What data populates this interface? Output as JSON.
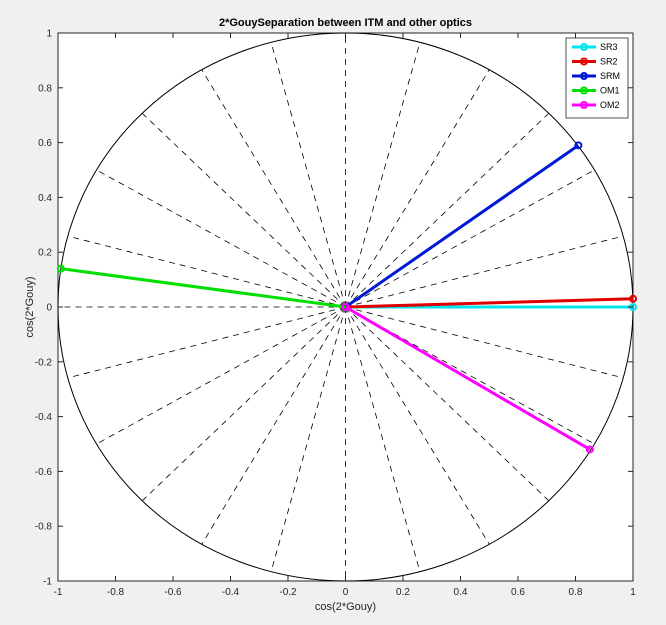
{
  "chart_data": {
    "type": "line",
    "title": "2*GouySeparation between ITM and other optics",
    "xlabel": "cos(2*Gouy)",
    "ylabel": "cos(2*Gouy)",
    "xlim": [
      -1,
      1
    ],
    "ylim": [
      -1,
      1
    ],
    "xticks": [
      "-1",
      "-0.8",
      "-0.6",
      "-0.4",
      "-0.2",
      "0",
      "0.2",
      "0.4",
      "0.6",
      "0.8",
      "1"
    ],
    "yticks": [
      "-1",
      "-0.8",
      "-0.6",
      "-0.4",
      "-0.2",
      "0",
      "0.2",
      "0.4",
      "0.6",
      "0.8",
      "1"
    ],
    "unit_circle": true,
    "radial_guides_deg": [
      0,
      15,
      30,
      45,
      60,
      75,
      90,
      105,
      120,
      135,
      150,
      165,
      180,
      195,
      210,
      225,
      240,
      255,
      270,
      285,
      300,
      315,
      330,
      345
    ],
    "legend_position": "top-right",
    "series": [
      {
        "name": "SR3",
        "color": "#00e5ee",
        "x": [
          0,
          1.0
        ],
        "y": [
          0,
          0.0
        ]
      },
      {
        "name": "SR2",
        "color": "#e00000",
        "x": [
          0,
          1.0
        ],
        "y": [
          0,
          0.03
        ]
      },
      {
        "name": "SRM",
        "color": "#0019d6",
        "x": [
          0,
          0.81
        ],
        "y": [
          0,
          0.59
        ]
      },
      {
        "name": "OM1",
        "color": "#00e000",
        "x": [
          0,
          -0.99
        ],
        "y": [
          0,
          0.14
        ]
      },
      {
        "name": "OM2",
        "color": "#ff00ff",
        "x": [
          0,
          0.85
        ],
        "y": [
          0,
          -0.52
        ]
      }
    ]
  }
}
